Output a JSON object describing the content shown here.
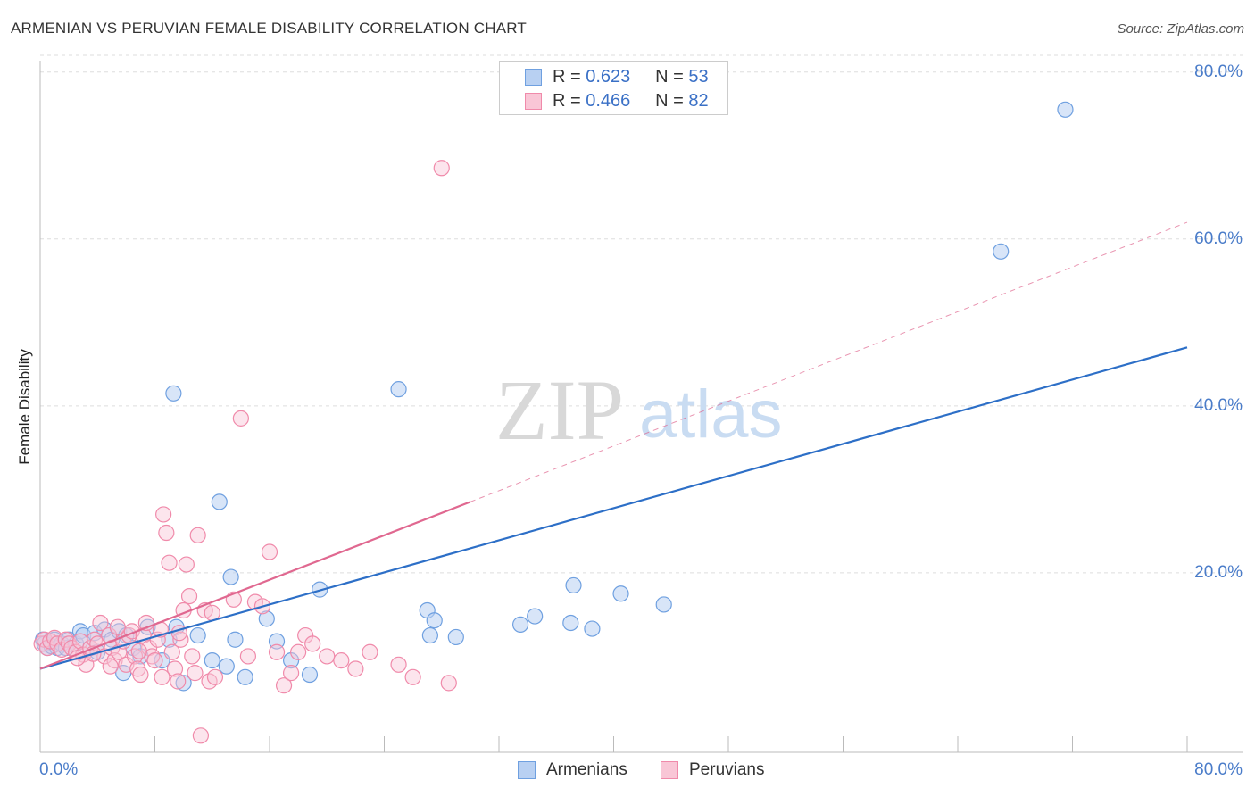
{
  "chart_data": {
    "type": "scatter",
    "title": "ARMENIAN VS PERUVIAN FEMALE DISABILITY CORRELATION CHART",
    "source": "Source: ZipAtlas.com",
    "ylabel": "Female Disability",
    "xlabel": "",
    "xlim": [
      0,
      80
    ],
    "ylim": [
      -1.5,
      82
    ],
    "y_ticks": [
      "80.0%",
      "60.0%",
      "40.0%",
      "20.0%"
    ],
    "y_tick_values": [
      80,
      60,
      40,
      20
    ],
    "x_tick_labels": [
      "0.0%",
      "80.0%"
    ],
    "x_tick_values": [
      0,
      80
    ],
    "grid": true,
    "watermark": "ZIPatlas",
    "legend": {
      "placement": "top-center",
      "entries": [
        {
          "r_label": "R =",
          "r": "0.623",
          "n_label": "N =",
          "n": "53"
        },
        {
          "r_label": "R =",
          "r": "0.466",
          "n_label": "N =",
          "n": "82"
        }
      ]
    },
    "colors": {
      "armenians": "#6fa0e0",
      "armenians_fill": "#b8d0f2",
      "armenians_line": "#2d6fc7",
      "peruvians": "#f08aaa",
      "peruvians_fill": "#f9c6d6",
      "peruvians_line": "#e06890"
    },
    "series": [
      {
        "name": "Armenians",
        "trend": {
          "x0": 0,
          "y0": 8.5,
          "x1": 80,
          "y1": 47.0
        },
        "points": [
          [
            0.2,
            12.0
          ],
          [
            0.3,
            11.5
          ],
          [
            0.5,
            11.0
          ],
          [
            0.8,
            11.2
          ],
          [
            1.0,
            12.0
          ],
          [
            1.2,
            11.0
          ],
          [
            1.5,
            11.5
          ],
          [
            1.8,
            11.0
          ],
          [
            2.0,
            12.0
          ],
          [
            2.5,
            11.5
          ],
          [
            2.8,
            13.0
          ],
          [
            3.0,
            12.5
          ],
          [
            3.5,
            11.0
          ],
          [
            3.8,
            12.8
          ],
          [
            4.0,
            10.5
          ],
          [
            4.5,
            13.2
          ],
          [
            5.0,
            12.0
          ],
          [
            5.5,
            13.0
          ],
          [
            5.8,
            8.0
          ],
          [
            6.0,
            12.5
          ],
          [
            6.5,
            11.0
          ],
          [
            7.0,
            10.0
          ],
          [
            7.5,
            13.5
          ],
          [
            8.5,
            9.5
          ],
          [
            9.0,
            12.0
          ],
          [
            9.3,
            41.5
          ],
          [
            9.5,
            13.5
          ],
          [
            10.0,
            6.8
          ],
          [
            11.0,
            12.5
          ],
          [
            12.0,
            9.5
          ],
          [
            12.5,
            28.5
          ],
          [
            13.0,
            8.8
          ],
          [
            13.3,
            19.5
          ],
          [
            13.6,
            12.0
          ],
          [
            14.3,
            7.5
          ],
          [
            15.8,
            14.5
          ],
          [
            16.5,
            11.8
          ],
          [
            17.5,
            9.5
          ],
          [
            18.8,
            7.8
          ],
          [
            19.5,
            18.0
          ],
          [
            25.0,
            42.0
          ],
          [
            27.0,
            15.5
          ],
          [
            27.2,
            12.5
          ],
          [
            27.5,
            14.3
          ],
          [
            29.0,
            12.3
          ],
          [
            33.5,
            13.8
          ],
          [
            34.5,
            14.8
          ],
          [
            37.0,
            14.0
          ],
          [
            37.2,
            18.5
          ],
          [
            38.5,
            13.3
          ],
          [
            40.5,
            17.5
          ],
          [
            43.5,
            16.2
          ],
          [
            67.0,
            58.5
          ],
          [
            71.5,
            75.5
          ]
        ]
      },
      {
        "name": "Peruvians",
        "trend": {
          "x0": 0,
          "y0": 8.5,
          "x1": 30,
          "y1": 28.5
        },
        "trend_ext": {
          "x0": 30,
          "y0": 28.5,
          "x1": 80,
          "y1": 62.0
        },
        "points": [
          [
            0.1,
            11.5
          ],
          [
            0.3,
            12.0
          ],
          [
            0.5,
            11.0
          ],
          [
            0.7,
            11.8
          ],
          [
            1.0,
            12.2
          ],
          [
            1.2,
            11.5
          ],
          [
            1.5,
            10.8
          ],
          [
            1.8,
            12.0
          ],
          [
            2.0,
            11.5
          ],
          [
            2.2,
            11.0
          ],
          [
            2.5,
            10.5
          ],
          [
            2.8,
            11.8
          ],
          [
            3.0,
            10.2
          ],
          [
            3.2,
            9.0
          ],
          [
            3.5,
            11.0
          ],
          [
            3.8,
            12.0
          ],
          [
            4.0,
            11.5
          ],
          [
            4.2,
            14.0
          ],
          [
            4.5,
            10.0
          ],
          [
            4.8,
            12.5
          ],
          [
            5.0,
            11.0
          ],
          [
            5.2,
            9.5
          ],
          [
            5.5,
            10.5
          ],
          [
            5.8,
            11.8
          ],
          [
            6.0,
            9.0
          ],
          [
            6.2,
            12.5
          ],
          [
            6.4,
            13.0
          ],
          [
            6.6,
            10.0
          ],
          [
            6.8,
            8.5
          ],
          [
            7.0,
            7.8
          ],
          [
            7.2,
            12.5
          ],
          [
            7.4,
            14.0
          ],
          [
            7.6,
            11.0
          ],
          [
            7.8,
            10.0
          ],
          [
            8.0,
            9.5
          ],
          [
            8.2,
            12.0
          ],
          [
            8.4,
            13.2
          ],
          [
            8.5,
            7.5
          ],
          [
            8.6,
            27.0
          ],
          [
            8.8,
            24.8
          ],
          [
            9.0,
            21.2
          ],
          [
            9.2,
            10.5
          ],
          [
            9.4,
            8.5
          ],
          [
            9.6,
            7.0
          ],
          [
            9.8,
            12.0
          ],
          [
            10.0,
            15.5
          ],
          [
            10.2,
            21.0
          ],
          [
            10.4,
            17.2
          ],
          [
            10.6,
            10.0
          ],
          [
            10.8,
            8.0
          ],
          [
            11.0,
            24.5
          ],
          [
            11.5,
            15.5
          ],
          [
            11.8,
            7.0
          ],
          [
            12.0,
            15.2
          ],
          [
            12.2,
            7.5
          ],
          [
            13.5,
            16.8
          ],
          [
            14.0,
            38.5
          ],
          [
            14.5,
            10.0
          ],
          [
            15.0,
            16.5
          ],
          [
            15.5,
            16.0
          ],
          [
            16.0,
            22.5
          ],
          [
            16.5,
            10.5
          ],
          [
            17.0,
            6.5
          ],
          [
            17.5,
            8.0
          ],
          [
            18.0,
            10.5
          ],
          [
            18.5,
            12.5
          ],
          [
            19.0,
            11.5
          ],
          [
            20.0,
            10.0
          ],
          [
            21.0,
            9.5
          ],
          [
            22.0,
            8.5
          ],
          [
            23.0,
            10.5
          ],
          [
            25.0,
            9.0
          ],
          [
            26.0,
            7.5
          ],
          [
            28.0,
            68.5
          ],
          [
            28.5,
            6.8
          ],
          [
            11.2,
            0.5
          ],
          [
            2.6,
            9.8
          ],
          [
            5.4,
            13.5
          ],
          [
            6.9,
            10.6
          ],
          [
            9.7,
            12.8
          ],
          [
            3.7,
            10.3
          ],
          [
            4.9,
            8.8
          ]
        ]
      }
    ]
  },
  "bottom_legend": {
    "armenians": "Armenians",
    "peruvians": "Peruvians"
  }
}
